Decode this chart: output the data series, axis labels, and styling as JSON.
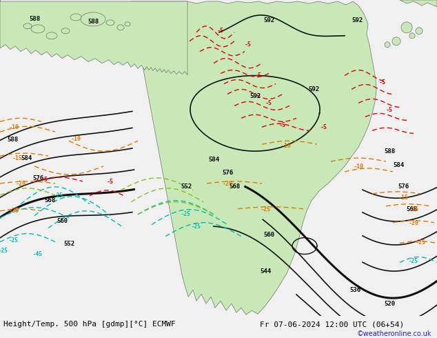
{
  "title_left": "Height/Temp. 500 hPa [gdmp][°C] ECMWF",
  "title_right": "Fr 07-06-2024 12:00 UTC (06+54)",
  "credit": "©weatheronline.co.uk",
  "bg_color": "#d8d8d8",
  "land_color": "#c8e8b8",
  "land_color2": "#b0d8a0",
  "sea_color": "#d8d8d8",
  "figsize": [
    6.34,
    4.9
  ],
  "dpi": 100
}
